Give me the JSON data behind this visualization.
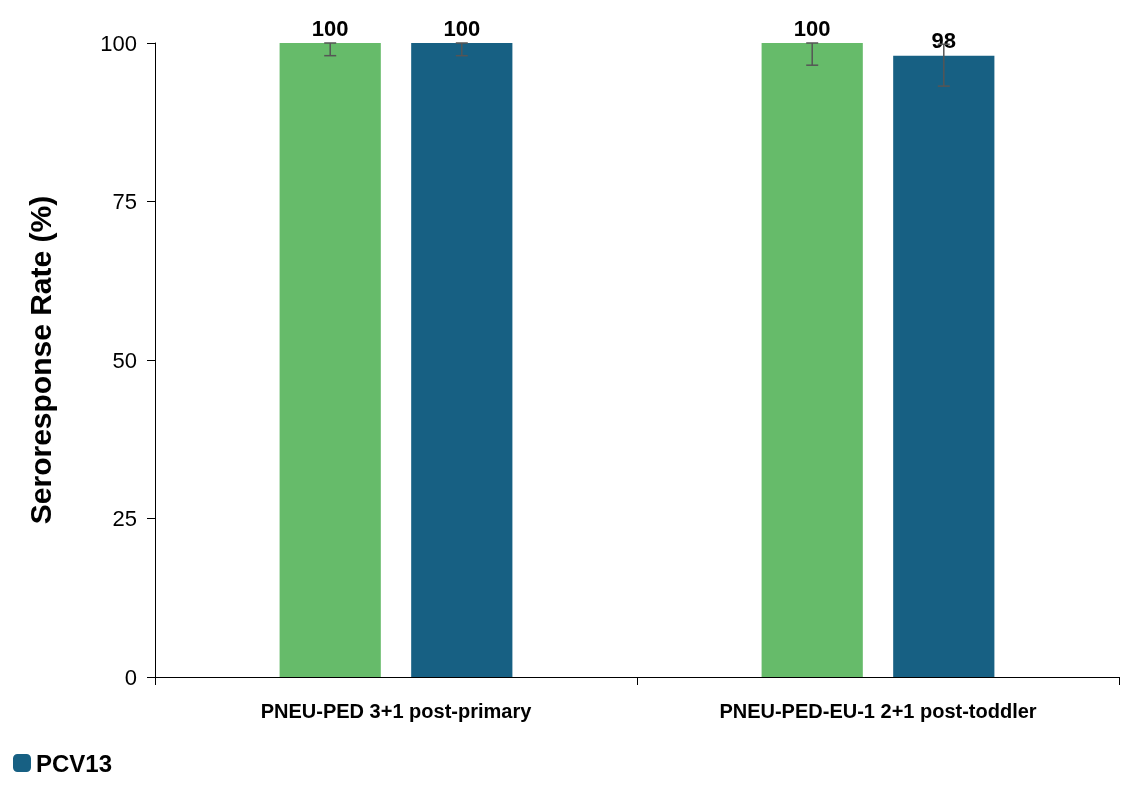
{
  "chart_data": {
    "type": "bar",
    "ylabel": "Seroresponse Rate (%)",
    "categories": [
      "PNEU-PED 3+1 post-primary",
      "PNEU-PED-EU-1 2+1 post-toddler"
    ],
    "series": [
      {
        "color": "#66bb6a",
        "values": [
          100,
          100
        ],
        "errors": [
          [
            98,
            100
          ],
          [
            96.5,
            100
          ]
        ]
      },
      {
        "name": "PCV13",
        "color": "#176083",
        "values": [
          100,
          98
        ],
        "errors": [
          [
            98,
            100
          ],
          [
            93.2,
            99.8
          ]
        ]
      }
    ],
    "ylim": [
      0,
      100
    ],
    "yticks": [
      0,
      25,
      50,
      75,
      100
    ],
    "grid": false,
    "legend": "bottom left",
    "data_labels": true
  }
}
